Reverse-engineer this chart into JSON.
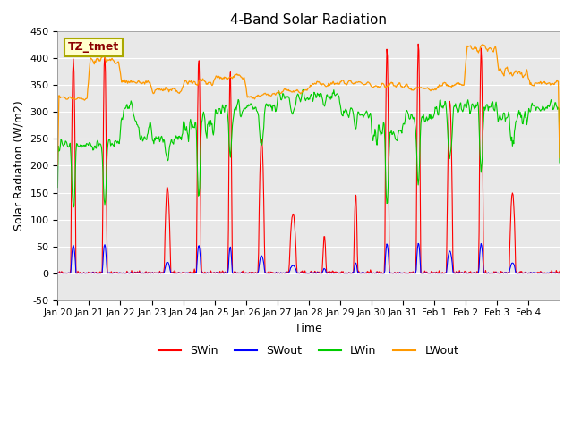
{
  "title": "4-Band Solar Radiation",
  "ylabel": "Solar Radiation (W/m2)",
  "xlabel": "Time",
  "annotation": "TZ_tmet",
  "ylim": [
    -50,
    450
  ],
  "series_colors": {
    "SWin": "#ff0000",
    "SWout": "#0000ff",
    "LWin": "#00cc00",
    "LWout": "#ff9900"
  },
  "xtick_labels": [
    "Jan 20",
    "Jan 21",
    "Jan 22",
    "Jan 23",
    "Jan 24",
    "Jan 25",
    "Jan 26",
    "Jan 27",
    "Jan 28",
    "Jan 29",
    "Jan 30",
    "Jan 31",
    "Feb 1",
    "Feb 2",
    "Feb 3",
    "Feb 4"
  ],
  "ytick_values": [
    -50,
    0,
    50,
    100,
    150,
    200,
    250,
    300,
    350,
    400,
    450
  ],
  "legend_entries": [
    "SWin",
    "SWout",
    "LWin",
    "LWout"
  ]
}
